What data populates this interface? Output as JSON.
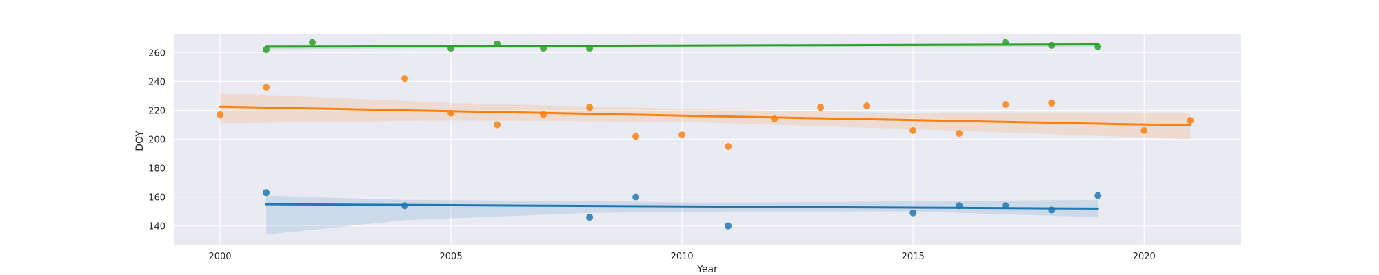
{
  "chart_data": {
    "type": "scatter",
    "title": "",
    "xlabel": "Year",
    "ylabel": "DOY",
    "xlim": [
      1999,
      2022.1
    ],
    "ylim": [
      127,
      273
    ],
    "xticks": [
      2000,
      2005,
      2010,
      2015,
      2020
    ],
    "yticks": [
      140,
      160,
      180,
      200,
      220,
      240,
      260
    ],
    "grid": true,
    "background": "#eaeaf2",
    "series": [
      {
        "color": "#1f77b4",
        "points": [
          {
            "x": 2001,
            "y": 163
          },
          {
            "x": 2004,
            "y": 154
          },
          {
            "x": 2008,
            "y": 146
          },
          {
            "x": 2009,
            "y": 160
          },
          {
            "x": 2011,
            "y": 140
          },
          {
            "x": 2015,
            "y": 149
          },
          {
            "x": 2016,
            "y": 154
          },
          {
            "x": 2017,
            "y": 154
          },
          {
            "x": 2018,
            "y": 151
          },
          {
            "x": 2019,
            "y": 161
          }
        ],
        "fit": {
          "x": [
            2001,
            2019
          ],
          "y": [
            155,
            152
          ]
        },
        "band": {
          "x": [
            2001,
            2004,
            2008,
            2011,
            2015,
            2019
          ],
          "lower": [
            134,
            144,
            149,
            150,
            150,
            146
          ],
          "upper": [
            161,
            158,
            157,
            156,
            157,
            158
          ]
        }
      },
      {
        "color": "#ff7f0e",
        "points": [
          {
            "x": 2000,
            "y": 217
          },
          {
            "x": 2001,
            "y": 236
          },
          {
            "x": 2004,
            "y": 242
          },
          {
            "x": 2005,
            "y": 218
          },
          {
            "x": 2006,
            "y": 210
          },
          {
            "x": 2007,
            "y": 217
          },
          {
            "x": 2008,
            "y": 222
          },
          {
            "x": 2009,
            "y": 202
          },
          {
            "x": 2010,
            "y": 203
          },
          {
            "x": 2011,
            "y": 195
          },
          {
            "x": 2012,
            "y": 214
          },
          {
            "x": 2013,
            "y": 222
          },
          {
            "x": 2014,
            "y": 223
          },
          {
            "x": 2015,
            "y": 206
          },
          {
            "x": 2016,
            "y": 204
          },
          {
            "x": 2017,
            "y": 224
          },
          {
            "x": 2018,
            "y": 225
          },
          {
            "x": 2020,
            "y": 206
          },
          {
            "x": 2021,
            "y": 213
          }
        ],
        "fit": {
          "x": [
            2000,
            2021
          ],
          "y": [
            222.5,
            209.5
          ]
        },
        "band": {
          "x": [
            2000,
            2005,
            2010,
            2015,
            2021
          ],
          "lower": [
            211,
            213,
            212,
            207,
            200
          ],
          "upper": [
            232,
            225,
            221,
            218,
            218
          ]
        }
      },
      {
        "color": "#2ca02c",
        "points": [
          {
            "x": 2001,
            "y": 262
          },
          {
            "x": 2002,
            "y": 267
          },
          {
            "x": 2005,
            "y": 263
          },
          {
            "x": 2006,
            "y": 266
          },
          {
            "x": 2007,
            "y": 263
          },
          {
            "x": 2008,
            "y": 263
          },
          {
            "x": 2017,
            "y": 267
          },
          {
            "x": 2018,
            "y": 265
          },
          {
            "x": 2019,
            "y": 264
          }
        ],
        "fit": {
          "x": [
            2001,
            2019
          ],
          "y": [
            264,
            265.6
          ]
        },
        "band": {
          "x": [
            2001,
            2010,
            2019
          ],
          "lower": [
            262.3,
            263.8,
            263.8
          ],
          "upper": [
            265.2,
            265.4,
            267
          ]
        }
      }
    ]
  }
}
